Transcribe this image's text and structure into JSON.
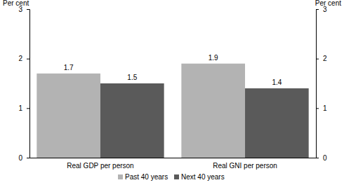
{
  "chart_data": {
    "type": "bar",
    "y_label": "Per cent",
    "y2_label": "Per cent",
    "categories": [
      "Real GDP per person",
      "Real GNI per person"
    ],
    "series": [
      {
        "name": "Past 40 years",
        "color": "#b3b3b3",
        "values": [
          1.7,
          1.9
        ]
      },
      {
        "name": "Next 40 years",
        "color": "#5a5a5a",
        "values": [
          1.5,
          1.4
        ]
      }
    ],
    "ylim": [
      0,
      3
    ],
    "yticks": [
      0,
      1,
      2,
      3
    ],
    "y2lim": [
      0,
      3
    ],
    "y2ticks": [
      0,
      1,
      2,
      3
    ],
    "data_labels": true,
    "grid": false,
    "legend": "bottom"
  }
}
